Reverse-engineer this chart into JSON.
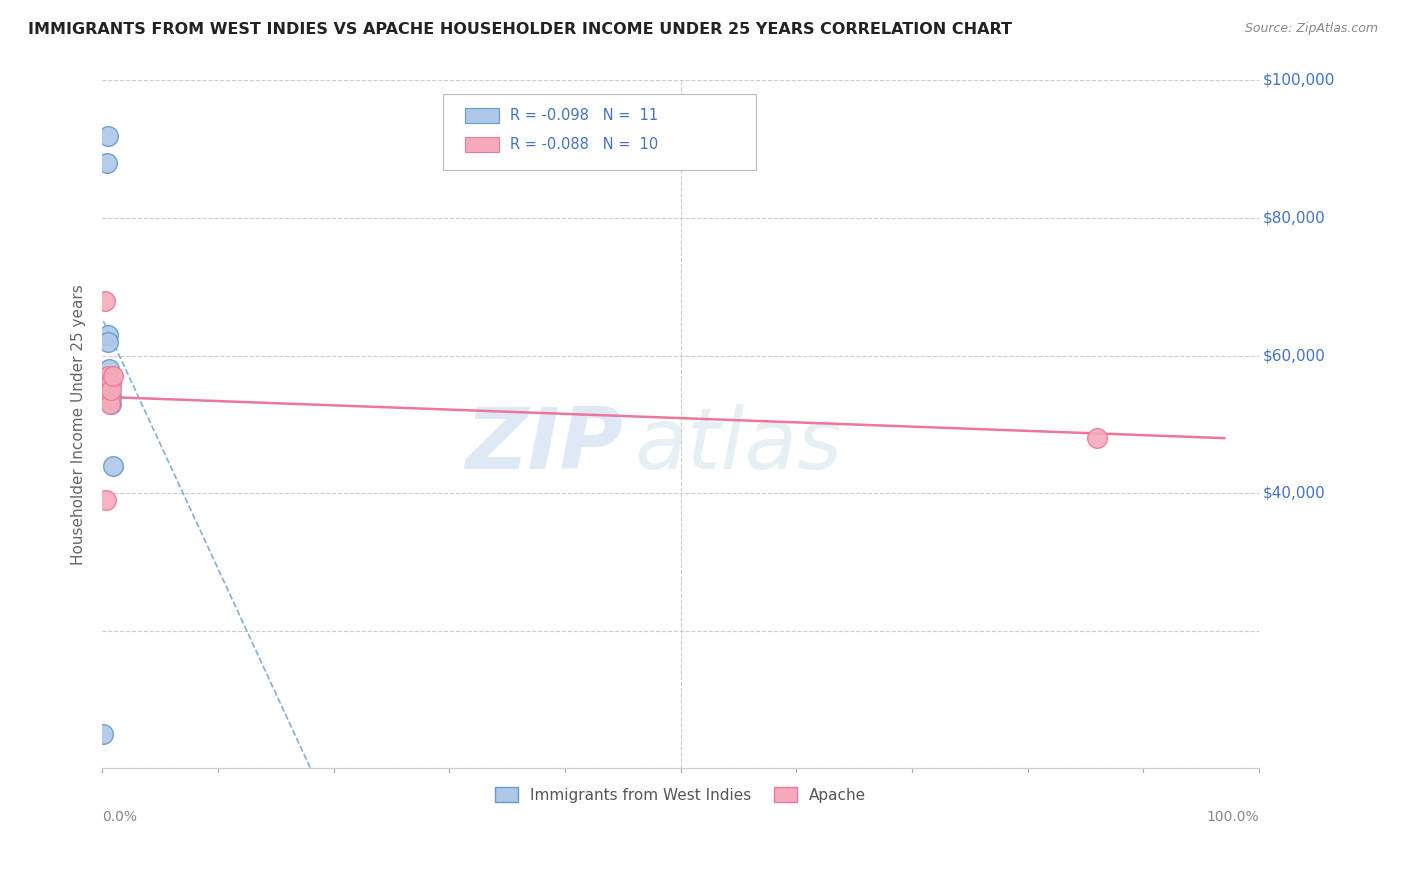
{
  "title": "IMMIGRANTS FROM WEST INDIES VS APACHE HOUSEHOLDER INCOME UNDER 25 YEARS CORRELATION CHART",
  "source": "Source: ZipAtlas.com",
  "ylabel": "Householder Income Under 25 years",
  "xlim": [
    0,
    1.0
  ],
  "ylim": [
    0,
    100000
  ],
  "legend_blue_R": "R = -0.098",
  "legend_blue_N": "N =  11",
  "legend_pink_R": "R = -0.088",
  "legend_pink_N": "N =  10",
  "legend_label_blue": "Immigrants from West Indies",
  "legend_label_pink": "Apache",
  "blue_scatter_x": [
    0.005,
    0.004,
    0.005,
    0.005,
    0.006,
    0.006,
    0.007,
    0.008,
    0.008,
    0.009,
    0.001
  ],
  "blue_scatter_y": [
    92000,
    88000,
    63000,
    62000,
    58000,
    56000,
    56000,
    54000,
    53000,
    44000,
    5000
  ],
  "pink_scatter_x": [
    0.002,
    0.003,
    0.005,
    0.006,
    0.007,
    0.007,
    0.008,
    0.008,
    0.009,
    0.86
  ],
  "pink_scatter_y": [
    68000,
    39000,
    57000,
    56000,
    54000,
    53000,
    56000,
    55000,
    57000,
    48000
  ],
  "blue_line_x": [
    0.001,
    0.18
  ],
  "blue_line_y": [
    65000,
    0
  ],
  "pink_line_x": [
    0.001,
    0.97
  ],
  "pink_line_y": [
    54000,
    48000
  ],
  "blue_color": "#adc8e8",
  "pink_color": "#f5aabb",
  "blue_line_color": "#6699cc",
  "pink_line_color": "#ee7799",
  "watermark_zip": "ZIP",
  "watermark_atlas": "atlas",
  "background_color": "#ffffff",
  "grid_color": "#cccccc",
  "right_label_color": "#4472c4",
  "title_color": "#222222",
  "source_color": "#888888",
  "axis_label_color": "#666666",
  "tick_label_color": "#888888"
}
